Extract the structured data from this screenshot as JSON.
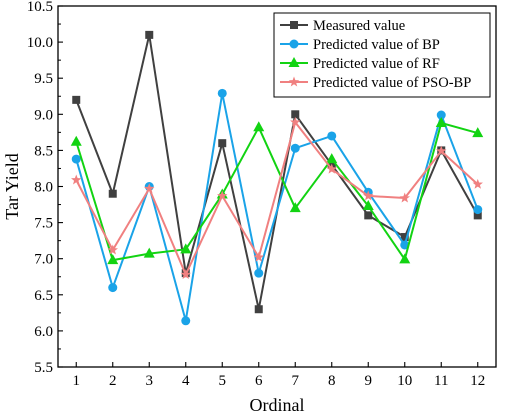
{
  "chart_data": {
    "type": "line",
    "title": "",
    "xlabel": "Ordinal",
    "ylabel": "Tar Yield",
    "x": [
      1,
      2,
      3,
      4,
      5,
      6,
      7,
      8,
      9,
      10,
      11,
      12
    ],
    "x_tick_labels": [
      "1",
      "2",
      "3",
      "4",
      "5",
      "6",
      "7",
      "8",
      "9",
      "10",
      "11",
      "12"
    ],
    "xlim": [
      0.5,
      12.5
    ],
    "ylim": [
      5.5,
      10.5
    ],
    "y_ticks": [
      5.5,
      6.0,
      6.5,
      7.0,
      7.5,
      8.0,
      8.5,
      9.0,
      9.5,
      10.0,
      10.5
    ],
    "y_tick_labels": [
      "5.5",
      "6.0",
      "6.5",
      "7.0",
      "7.5",
      "8.0",
      "8.5",
      "9.0",
      "9.5",
      "10.0",
      "10.5"
    ],
    "grid": false,
    "legend_position": "top-right",
    "series": [
      {
        "name": "Measured value",
        "color": "#404040",
        "marker": "square",
        "values": [
          9.2,
          7.9,
          10.1,
          6.8,
          8.6,
          6.3,
          9.0,
          8.3,
          7.6,
          7.3,
          8.5,
          7.6
        ]
      },
      {
        "name": "Predicted value of BP",
        "color": "#1aa3e8",
        "marker": "circle",
        "values": [
          8.38,
          6.6,
          8.0,
          6.14,
          9.29,
          6.8,
          8.53,
          8.7,
          7.92,
          7.19,
          8.99,
          7.68
        ]
      },
      {
        "name": "Predicted value of RF",
        "color": "#12d312",
        "marker": "triangle",
        "values": [
          8.62,
          6.98,
          7.07,
          7.13,
          7.89,
          8.82,
          7.7,
          8.38,
          7.73,
          6.99,
          8.88,
          8.74
        ]
      },
      {
        "name": "Predicted value of PSO-BP",
        "color": "#f08080",
        "marker": "star",
        "values": [
          8.09,
          7.12,
          7.97,
          6.78,
          7.87,
          7.02,
          8.89,
          8.24,
          7.87,
          7.84,
          8.49,
          8.03
        ]
      }
    ]
  }
}
